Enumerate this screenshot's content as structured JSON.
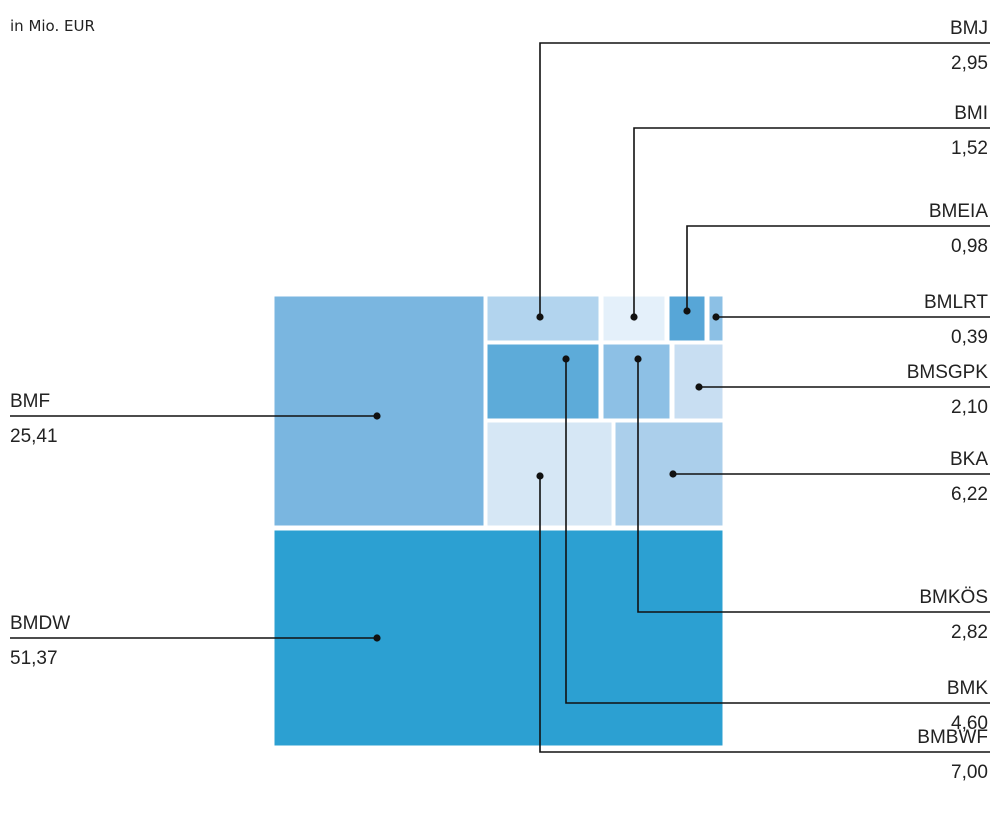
{
  "unit_label": "in Mio. EUR",
  "chart_data": {
    "type": "treemap",
    "title": "",
    "unit": "in Mio. EUR",
    "items": [
      {
        "name": "BMDW",
        "value_label": "51,37",
        "value": 51.37,
        "color": "#2ca0d2"
      },
      {
        "name": "BMF",
        "value_label": "25,41",
        "value": 25.41,
        "color": "#7ab6e0"
      },
      {
        "name": "BMBWF",
        "value_label": "7,00",
        "value": 7.0,
        "color": "#d6e7f5"
      },
      {
        "name": "BKA",
        "value_label": "6,22",
        "value": 6.22,
        "color": "#abcfeb"
      },
      {
        "name": "BMK",
        "value_label": "4,60",
        "value": 4.6,
        "color": "#5dabd9"
      },
      {
        "name": "BMJ",
        "value_label": "2,95",
        "value": 2.95,
        "color": "#b2d4ee"
      },
      {
        "name": "BMKÖS",
        "value_label": "2,82",
        "value": 2.82,
        "color": "#8dc0e5"
      },
      {
        "name": "BMSGPK",
        "value_label": "2,10",
        "value": 2.1,
        "color": "#c8def2"
      },
      {
        "name": "BMI",
        "value_label": "1,52",
        "value": 1.52,
        "color": "#e4f0fa"
      },
      {
        "name": "BMEIA",
        "value_label": "0,98",
        "value": 0.98,
        "color": "#57a6d7"
      },
      {
        "name": "BMLRT",
        "value_label": "0,39",
        "value": 0.39,
        "color": "#8cc0e5"
      }
    ]
  }
}
